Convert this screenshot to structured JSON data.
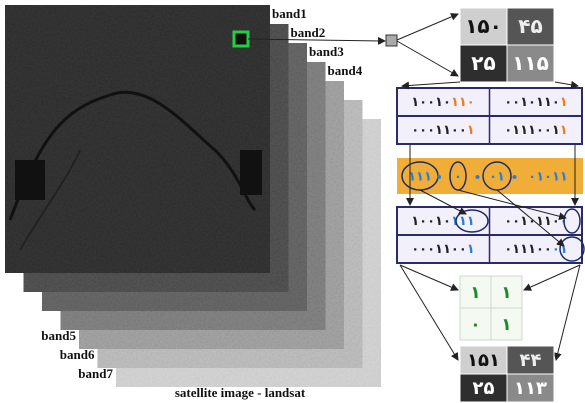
{
  "bands": [
    "band1",
    "band2",
    "band3",
    "band4",
    "band5",
    "band6",
    "band7"
  ],
  "caption": "satellite image - landsat",
  "pixels": [
    [
      "۱۵۰",
      "۴۵"
    ],
    [
      "۲۵",
      "۱۱۵"
    ]
  ],
  "binary": [
    [
      [
        "۱۰۰۱۰",
        "۱۱۰"
      ],
      [
        "۰۰۱۰۱۱۰",
        "۱"
      ]
    ],
    [
      [
        "۰۰۰۱۱۰۰",
        "۱"
      ],
      [
        "۰۱۱۱۰۰۱",
        "۱"
      ]
    ]
  ],
  "message": [
    "۱۱۱",
    "۰",
    "۰۱",
    "۰۱۰۱۱"
  ],
  "embedded": [
    [
      [
        "۱۰۰۱۰",
        "۱۱۱"
      ],
      [
        "۰۰۱۰۱۱۰",
        "۰"
      ]
    ],
    [
      [
        "۰۰۰۱۱۰۰",
        "۱"
      ],
      [
        "۰۱۱۱۰۰",
        "۰۱"
      ]
    ]
  ],
  "lsb_grid": [
    [
      "۱",
      "۱"
    ],
    [
      "۰",
      "۱"
    ]
  ],
  "result": [
    [
      "۱۵۱",
      "۴۴"
    ],
    [
      "۲۵",
      "۱۱۳"
    ]
  ]
}
